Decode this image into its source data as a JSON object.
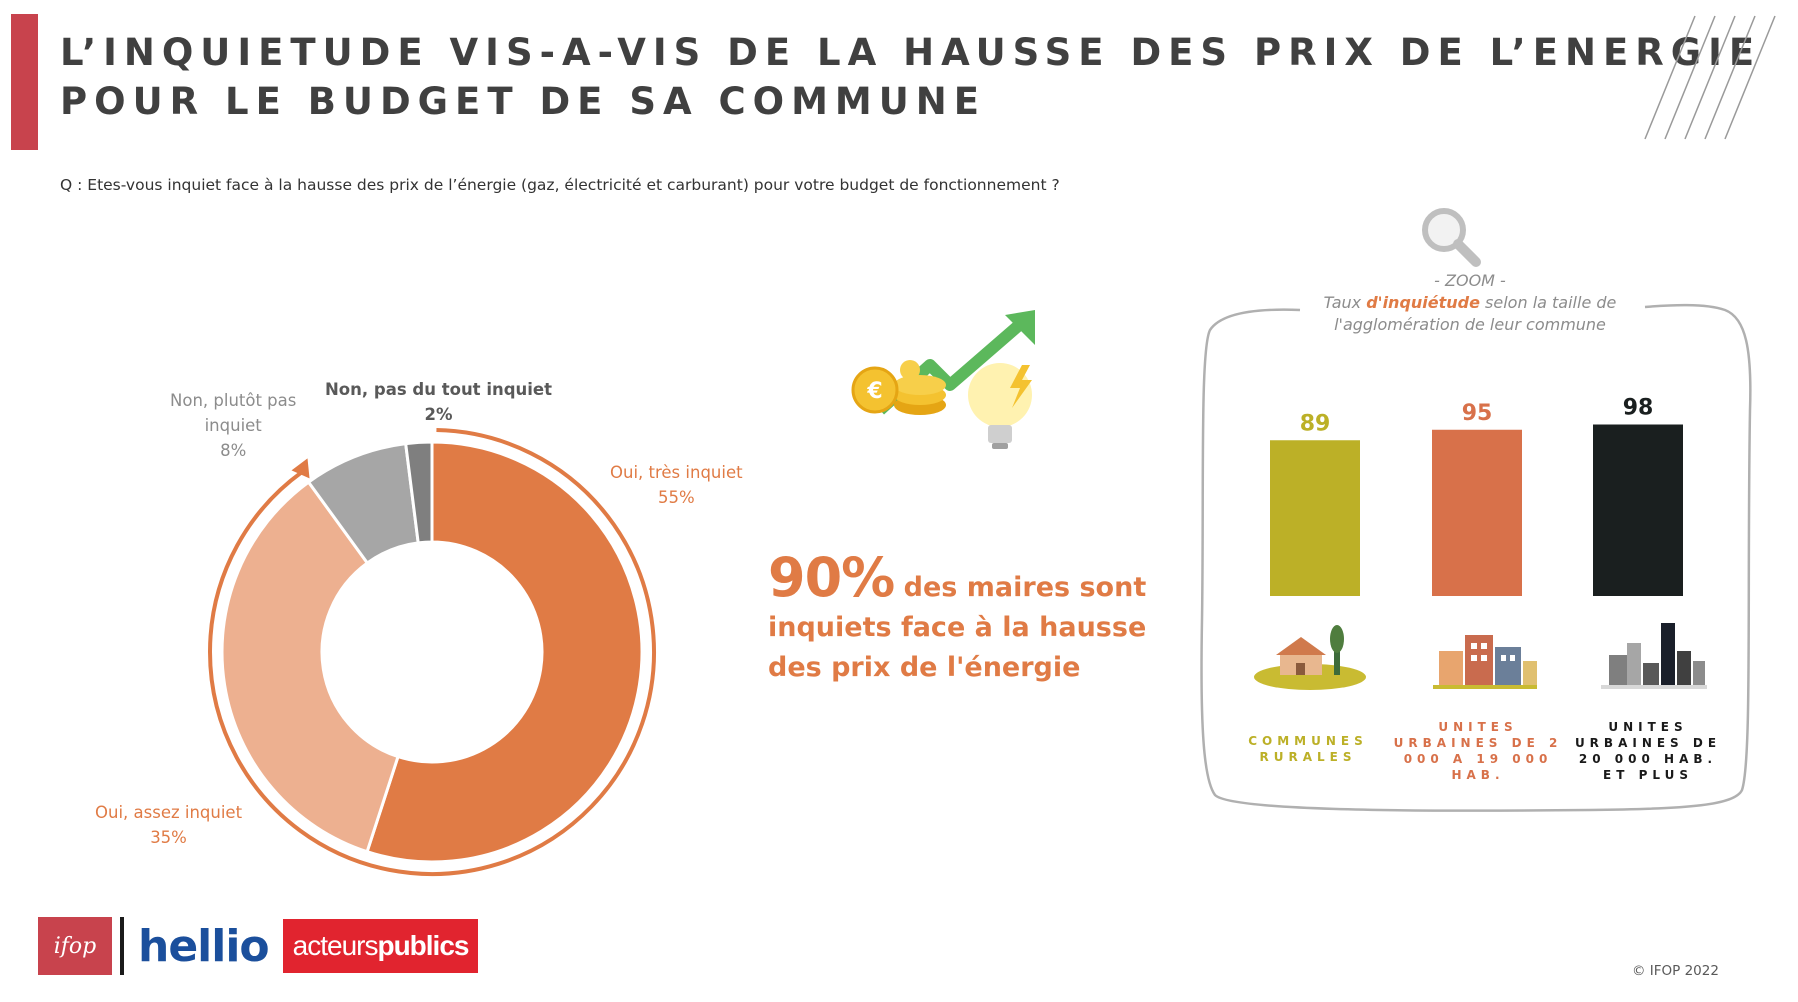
{
  "header": {
    "title_line1": "L’INQUIETUDE VIS-A-VIS DE LA HAUSSE DES PRIX DE L’ENERGIE",
    "title_line2": "POUR LE BUDGET DE SA COMMUNE",
    "question": "Q : Etes-vous inquiet face à la hausse des prix de l’énergie (gaz, électricité et carburant) pour votre budget de fonctionnement ?"
  },
  "headline": {
    "big": "90%",
    "line1": "des maires sont",
    "line2": "inquiets face à la hausse",
    "line3": "des prix de l'énergie"
  },
  "zoom": {
    "label": "- ZOOM -",
    "line1_pre": "Taux ",
    "line1_highlight": "d'inquiétude",
    "line1_post": " selon la taille de",
    "line2": "l'agglomération de leur commune"
  },
  "chart_data": [
    {
      "type": "pie",
      "variant": "donut",
      "slices": [
        {
          "label": "Oui, très inquiet",
          "value": 55,
          "display": "55%",
          "color": "#e07b45"
        },
        {
          "label": "Oui, assez inquiet",
          "value": 35,
          "display": "35%",
          "color": "#edb090"
        },
        {
          "label": "Non, plutôt pas inquiet",
          "value": 8,
          "display": "8%",
          "color": "#a6a6a6"
        },
        {
          "label": "Non, pas du tout inquiet",
          "value": 2,
          "display": "2%",
          "color": "#7f7f7f"
        }
      ]
    },
    {
      "type": "bar",
      "categories": [
        "COMMUNES RURALES",
        "UNITES URBAINES DE 2 000 A 19 000 HAB.",
        "UNITES URBAINES DE 20 000 HAB. ET PLUS"
      ],
      "values": [
        89,
        95,
        98
      ],
      "colors": [
        "#bcb027",
        "#d8714a",
        "#1a1f1f"
      ],
      "ylim": [
        0,
        100
      ]
    }
  ],
  "footer": {
    "logo_ifop": "ifop",
    "logo_hellio": "hellio",
    "logo_ap_light": "acteurs",
    "logo_ap_bold": "publics",
    "copyright": "© IFOP 2022"
  }
}
